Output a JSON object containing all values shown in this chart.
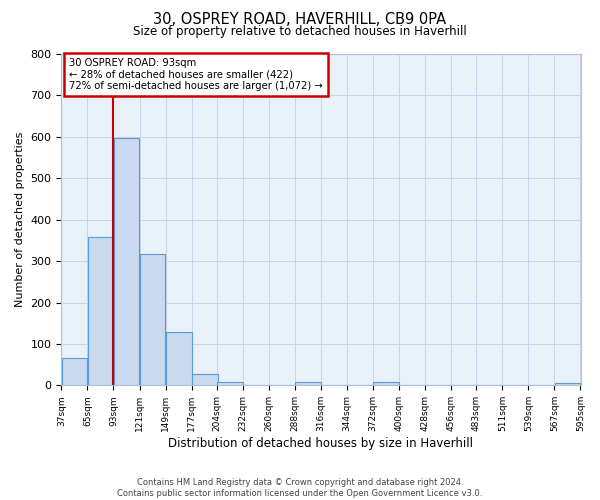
{
  "title": "30, OSPREY ROAD, HAVERHILL, CB9 0PA",
  "subtitle": "Size of property relative to detached houses in Haverhill",
  "xlabel": "Distribution of detached houses by size in Haverhill",
  "ylabel": "Number of detached properties",
  "bar_color": "#c9d9f0",
  "bar_edge_color": "#5b9bd5",
  "background_color": "#ffffff",
  "plot_bg_color": "#e8f0f8",
  "grid_color": "#c8d4e8",
  "annotation_box_color": "#ffffff",
  "annotation_box_edge_color": "#cc0000",
  "vline_color": "#cc0000",
  "bins": [
    37,
    65,
    93,
    121,
    149,
    177,
    204,
    232,
    260,
    288,
    316,
    344,
    372,
    400,
    428,
    456,
    483,
    511,
    539,
    567,
    595
  ],
  "counts": [
    65,
    357,
    598,
    317,
    130,
    27,
    7,
    0,
    0,
    7,
    0,
    0,
    7,
    0,
    0,
    0,
    0,
    0,
    0,
    5
  ],
  "property_size": 93,
  "annotation_line1": "30 OSPREY ROAD: 93sqm",
  "annotation_line2": "← 28% of detached houses are smaller (422)",
  "annotation_line3": "72% of semi-detached houses are larger (1,072) →",
  "footer_line1": "Contains HM Land Registry data © Crown copyright and database right 2024.",
  "footer_line2": "Contains public sector information licensed under the Open Government Licence v3.0.",
  "ylim": [
    0,
    800
  ],
  "yticks": [
    0,
    100,
    200,
    300,
    400,
    500,
    600,
    700,
    800
  ],
  "tick_labels": [
    "37sqm",
    "65sqm",
    "93sqm",
    "121sqm",
    "149sqm",
    "177sqm",
    "204sqm",
    "232sqm",
    "260sqm",
    "288sqm",
    "316sqm",
    "344sqm",
    "372sqm",
    "400sqm",
    "428sqm",
    "456sqm",
    "483sqm",
    "511sqm",
    "539sqm",
    "567sqm",
    "595sqm"
  ]
}
